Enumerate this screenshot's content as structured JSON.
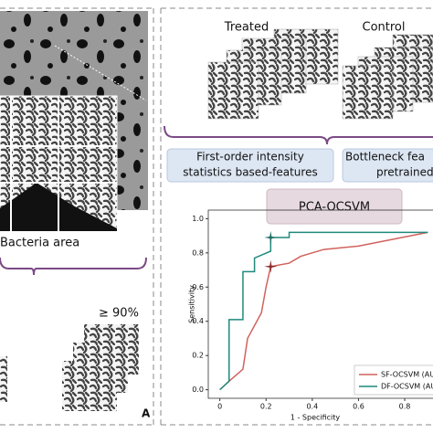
{
  "panel_left": {
    "bacteria_label": "Bacteria area",
    "threshold": "≥ 90%",
    "panel_letter": "A"
  },
  "panel_right": {
    "treated": "Treated",
    "control": "Control",
    "box_first_order": [
      "First-order intensity",
      "statistics based-features"
    ],
    "box_bottleneck": [
      "Bottleneck fea",
      "pretrained"
    ],
    "box_pca": "PCA-OCSVM"
  },
  "chart_data": {
    "type": "line",
    "xlabel": "1 - Specificity",
    "ylabel": "Sensitivity",
    "xlim": [
      -0.05,
      0.95
    ],
    "ylim": [
      -0.05,
      1.05
    ],
    "xticks": [
      0,
      0.2,
      0.4,
      0.6,
      0.8
    ],
    "yticks": [
      {
        "value": 0,
        "label": "0.0"
      },
      0.2,
      0.4,
      0.6,
      0.8,
      {
        "value": 1,
        "label": "1.0"
      }
    ],
    "series": [
      {
        "name": "SF-OCSVM (AU",
        "color": "#d0625c",
        "x": [
          0,
          0.04,
          0.1,
          0.12,
          0.18,
          0.2,
          0.22,
          0.3,
          0.35,
          0.45,
          0.6,
          0.75,
          0.9
        ],
        "values": [
          0,
          0.05,
          0.12,
          0.3,
          0.45,
          0.6,
          0.72,
          0.74,
          0.78,
          0.82,
          0.84,
          0.88,
          0.92
        ]
      },
      {
        "name": "DF-OCSVM (AU",
        "color": "#1f8a7c",
        "x": [
          0,
          0.04,
          0.04,
          0.1,
          0.1,
          0.15,
          0.15,
          0.22,
          0.22,
          0.3,
          0.3,
          0.9
        ],
        "values": [
          0,
          0.05,
          0.41,
          0.41,
          0.69,
          0.69,
          0.77,
          0.81,
          0.89,
          0.89,
          0.92,
          0.92
        ]
      }
    ],
    "markers": [
      {
        "x": 0.22,
        "y": 0.89,
        "color": "#1f6e66"
      },
      {
        "x": 0.22,
        "y": 0.72,
        "color": "#8a2a2a"
      }
    ]
  }
}
